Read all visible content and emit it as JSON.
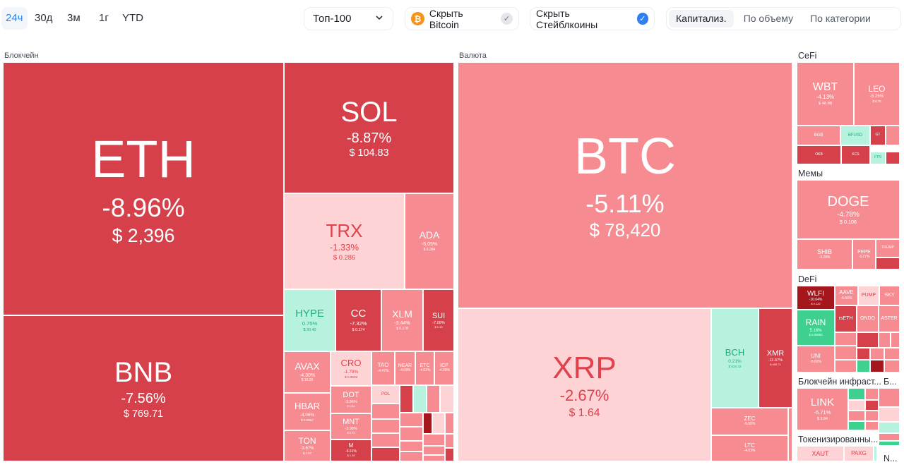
{
  "header": {
    "periods": [
      "24ч",
      "30д",
      "3м",
      "1г",
      "YTD"
    ],
    "selected_period": "24ч",
    "top_select": "Топ-100",
    "hide_bitcoin": "Скрыть Bitcoin",
    "hide_stablecoins": "Скрыть Стейблкоины",
    "views": [
      "Капитализ.",
      "По объему",
      "По категории"
    ],
    "selected_view": "Капитализ."
  },
  "colors": {
    "dark": "#d6404a",
    "mid": "#f68c92",
    "light": "#fdd3d5",
    "green": "#b6f2dd",
    "greenDark": "#3fcf8e",
    "darkest": "#a5161d",
    "accent": "#2f86e8",
    "bitcoin": "#f7931a"
  },
  "sections": [
    "Блокчейн",
    "Валюта",
    "CeFi",
    "Мемы",
    "DeFi",
    "Блокчейн инфраст...",
    "Б...",
    "Токенизированны...",
    "N..."
  ],
  "tiles": [
    {
      "symbol": "ETH",
      "change": "-8.96%",
      "price": "$ 2,396",
      "tone": "dark"
    },
    {
      "symbol": "BNB",
      "change": "-7.56%",
      "price": "$ 769.71",
      "tone": "dark"
    },
    {
      "symbol": "SOL",
      "change": "-8.87%",
      "price": "$ 104.83",
      "tone": "dark"
    },
    {
      "symbol": "TRX",
      "change": "-1.33%",
      "price": "$ 0.286",
      "tone": "light"
    },
    {
      "symbol": "ADA",
      "change": "-5.05%",
      "price": "$ 0.284",
      "tone": "mid"
    },
    {
      "symbol": "HYPE",
      "change": "0.75%",
      "price": "$ 30.40",
      "tone": "green"
    },
    {
      "symbol": "CC",
      "change": "-7.32%",
      "price": "$ 0.174",
      "tone": "dark"
    },
    {
      "symbol": "XLM",
      "change": "-3.44%",
      "price": "$ 0.178",
      "tone": "mid"
    },
    {
      "symbol": "SUI",
      "change": "-7.09%",
      "price": "$ 1.19",
      "tone": "dark"
    },
    {
      "symbol": "AVAX",
      "change": "-4.30%",
      "price": "$ 10.26",
      "tone": "mid"
    },
    {
      "symbol": "HBAR",
      "change": "-4.06%",
      "price": "$ 0.0957",
      "tone": "mid"
    },
    {
      "symbol": "TON",
      "change": "-3.67%",
      "price": "$ 1.57",
      "tone": "mid"
    },
    {
      "symbol": "CRO",
      "change": "-1.79%",
      "price": "$ 0.0838",
      "tone": "light"
    },
    {
      "symbol": "DOT",
      "change": "-3.96%",
      "price": "$ 1.51",
      "tone": "mid"
    },
    {
      "symbol": "MNT",
      "change": "-3.98%",
      "price": "$ 0.70",
      "tone": "mid"
    },
    {
      "symbol": "M",
      "change": "-6.51%",
      "price": "$ 1.29",
      "tone": "dark"
    },
    {
      "symbol": "TAO",
      "change": "-4.47%",
      "price": "",
      "tone": "mid"
    },
    {
      "symbol": "NEAR",
      "change": "-4.08%",
      "price": "",
      "tone": "mid"
    },
    {
      "symbol": "ETC",
      "change": "-4.02%",
      "price": "",
      "tone": "mid"
    },
    {
      "symbol": "ICP",
      "change": "-4.09%",
      "price": "",
      "tone": "mid"
    },
    {
      "symbol": "POL",
      "change": "",
      "price": "",
      "tone": "light"
    },
    {
      "symbol": "BTC",
      "change": "-5.11%",
      "price": "$ 78,420",
      "tone": "mid"
    },
    {
      "symbol": "XRP",
      "change": "-2.67%",
      "price": "$ 1.64",
      "tone": "light"
    },
    {
      "symbol": "BCH",
      "change": "0.21%",
      "price": "$ 534.32",
      "tone": "green"
    },
    {
      "symbol": "XMR",
      "change": "-11.67%",
      "price": "$ 409.71",
      "tone": "dark"
    },
    {
      "symbol": "ZEC",
      "change": "-5.60%",
      "price": "",
      "tone": "mid"
    },
    {
      "symbol": "LTC",
      "change": "-4.03%",
      "price": "",
      "tone": "mid"
    },
    {
      "symbol": "WBT",
      "change": "-4.13%",
      "price": "$ 48.88",
      "tone": "mid"
    },
    {
      "symbol": "LEO",
      "change": "-5.25%",
      "price": "$ 8.75",
      "tone": "mid"
    },
    {
      "symbol": "BGB",
      "change": "",
      "price": "",
      "tone": "mid"
    },
    {
      "symbol": "BFUSD",
      "change": "",
      "price": "",
      "tone": "green"
    },
    {
      "symbol": "GT",
      "change": "",
      "price": "",
      "tone": "dark"
    },
    {
      "symbol": "OKB",
      "change": "",
      "price": "",
      "tone": "dark"
    },
    {
      "symbol": "KCS",
      "change": "",
      "price": "",
      "tone": "dark"
    },
    {
      "symbol": "FTN",
      "change": "",
      "price": "",
      "tone": "green"
    },
    {
      "symbol": "DOGE",
      "change": "-4.78%",
      "price": "$ 0.106",
      "tone": "mid"
    },
    {
      "symbol": "SHIB",
      "change": "-3.28%",
      "price": "",
      "tone": "mid"
    },
    {
      "symbol": "PEPE",
      "change": "-3.27%",
      "price": "",
      "tone": "mid"
    },
    {
      "symbol": "TRUMP",
      "change": "",
      "price": "",
      "tone": "mid"
    },
    {
      "symbol": "WLFI",
      "change": "-10.64%",
      "price": "$ 0.122",
      "tone": "darkest"
    },
    {
      "symbol": "AAVE",
      "change": "-5.56%",
      "price": "",
      "tone": "mid"
    },
    {
      "symbol": "PUMP",
      "change": "",
      "price": "",
      "tone": "light"
    },
    {
      "symbol": "SKY",
      "change": "",
      "price": "",
      "tone": "mid"
    },
    {
      "symbol": "RAIN",
      "change": "5.16%",
      "price": "$ 0.00882",
      "tone": "greenDark"
    },
    {
      "symbol": "rsETH",
      "change": "",
      "price": "",
      "tone": "dark"
    },
    {
      "symbol": "ONDO",
      "change": "",
      "price": "",
      "tone": "mid"
    },
    {
      "symbol": "ASTER",
      "change": "",
      "price": "",
      "tone": "mid"
    },
    {
      "symbol": "UNI",
      "change": "-5.60%",
      "price": "",
      "tone": "mid"
    },
    {
      "symbol": "LINK",
      "change": "-5.71%",
      "price": "$ 9.84",
      "tone": "mid"
    },
    {
      "symbol": "XAUT",
      "change": "",
      "price": "",
      "tone": "light"
    },
    {
      "symbol": "PAXG",
      "change": "",
      "price": "",
      "tone": "light"
    }
  ]
}
